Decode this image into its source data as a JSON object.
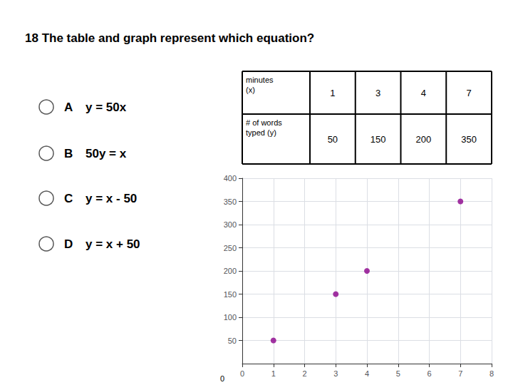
{
  "chart_data": {
    "type": "scatter",
    "title": "18 The table and graph represent which equation?",
    "annotations": [
      {
        "label": "A",
        "text": "y = 50x"
      },
      {
        "label": "B",
        "text": "50y = x"
      },
      {
        "label": "C",
        "text": "y = x - 50"
      },
      {
        "label": "D",
        "text": "y = x + 50"
      }
    ],
    "origin_label": "0",
    "table": {
      "rows": [
        {
          "label": "minutes\n(x)",
          "values": [
            1,
            3,
            4,
            7
          ]
        },
        {
          "label": "# of words\ntyped (y)",
          "values": [
            50,
            150,
            200,
            350
          ]
        }
      ]
    },
    "x": [
      1,
      3,
      4,
      7
    ],
    "values": [
      50,
      150,
      200,
      350
    ],
    "color": "#8B008B",
    "xlim": [
      0,
      8
    ],
    "ylim": [
      0,
      400
    ],
    "xticks": [
      0,
      1,
      2,
      3,
      4,
      5,
      6,
      7,
      8
    ],
    "yticks": [
      50,
      100,
      150,
      200,
      250,
      300,
      350,
      400
    ],
    "grid": true
  }
}
